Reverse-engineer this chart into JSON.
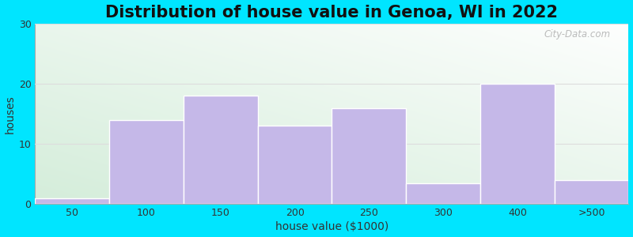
{
  "title": "Distribution of house value in Genoa, WI in 2022",
  "xlabel": "house value ($1000)",
  "ylabel": "houses",
  "bar_labels": [
    "50",
    "100",
    "150",
    "200",
    "250",
    "300",
    "400",
    ">500"
  ],
  "bar_heights": [
    1,
    14,
    18,
    13,
    16,
    3.5,
    20,
    4
  ],
  "bar_color": "#c5b8e8",
  "bar_edgecolor": "#ffffff",
  "bar_linewidth": 1.0,
  "ylim": [
    0,
    30
  ],
  "yticks": [
    0,
    10,
    20,
    30
  ],
  "outer_bg": "#00e5ff",
  "grad_color_left": "#c8e6c9",
  "grad_color_right": "#f5fff5",
  "grad_color_topleft": "#d4edda",
  "grad_color_topright": "#ffffff",
  "grid_color": "#dddddd",
  "title_fontsize": 15,
  "axis_label_fontsize": 10,
  "tick_fontsize": 9,
  "watermark": "City-Data.com"
}
